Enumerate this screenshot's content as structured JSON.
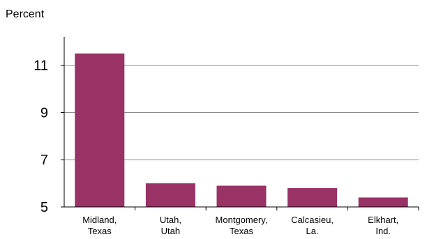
{
  "chart_data": {
    "type": "bar",
    "title": "",
    "xlabel": "",
    "ylabel": "Percent",
    "categories": [
      [
        "Midland,",
        "Texas"
      ],
      [
        "Utah,",
        "Utah"
      ],
      [
        "Montgomery,",
        "Texas"
      ],
      [
        "Calcasieu,",
        "La."
      ],
      [
        "Elkhart,",
        "Ind."
      ]
    ],
    "values": [
      11.5,
      6.0,
      5.9,
      5.8,
      5.4
    ],
    "yticks": [
      5,
      7,
      9,
      11
    ],
    "ylim": [
      5,
      12.2
    ],
    "grid": true,
    "colors": {
      "bar": "#993366",
      "grid": "#8c8c8c",
      "axis": "#000000"
    }
  }
}
